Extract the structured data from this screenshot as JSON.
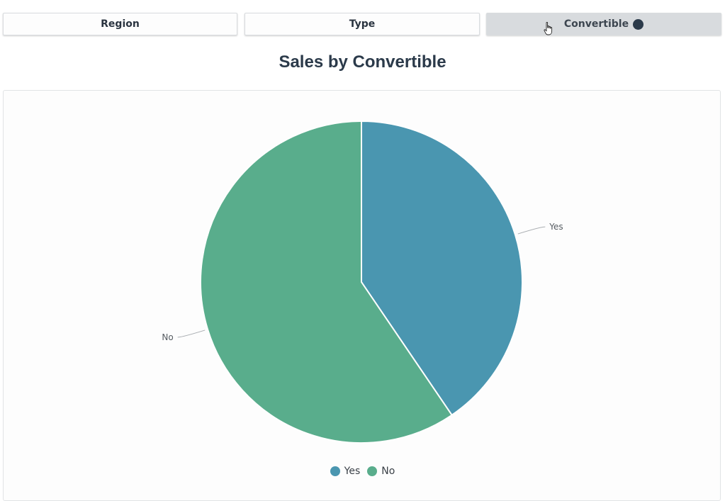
{
  "tabs": [
    {
      "label": "Region",
      "active": false
    },
    {
      "label": "Type",
      "active": false
    },
    {
      "label": "Convertible",
      "active": true
    }
  ],
  "colors": {
    "yes": "#4a96b0",
    "no": "#59ad8c",
    "dot": "#2b3a4a"
  },
  "chart_data": {
    "type": "pie",
    "title": "Sales by Convertible",
    "categories": [
      "Yes",
      "No"
    ],
    "values": [
      40.5,
      59.5
    ],
    "legend": [
      "Yes",
      "No"
    ],
    "legend_position": "bottom"
  }
}
